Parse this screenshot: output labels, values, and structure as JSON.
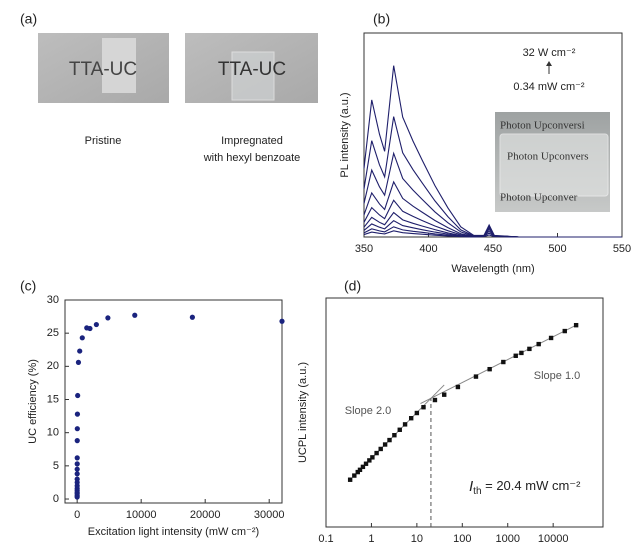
{
  "figure_a": {
    "panel_label": "(a)",
    "photos": [
      {
        "overlay_text": "TTA-UC",
        "caption": [
          "Pristine"
        ]
      },
      {
        "overlay_text": "TTA-UC",
        "caption": [
          "Impregnated",
          "with hexyl benzoate"
        ]
      }
    ]
  },
  "chart_data": [
    {
      "type": "line",
      "panel_label": "(b)",
      "x_label": "Wavelength (nm)",
      "y_label": "PL intensity (a.u.)",
      "x": [
        350,
        356,
        362,
        366,
        373,
        380,
        388,
        395,
        405,
        415,
        425,
        435,
        443,
        447,
        451,
        470,
        550
      ],
      "xlim": [
        350,
        550
      ],
      "xticks": [
        350,
        400,
        450,
        500,
        550
      ],
      "ylim": [
        0,
        100
      ],
      "series": [
        {
          "color": "#1f1f6b",
          "values": [
            33.6,
            67.2,
            50.4,
            42,
            84,
            58.8,
            47,
            37.8,
            25.2,
            14.3,
            5,
            0.8,
            0.8,
            5.9,
            0.8,
            0,
            0
          ]
        },
        {
          "color": "#1f1f6b",
          "values": [
            23.6,
            47.2,
            35.4,
            29.5,
            59,
            41.3,
            33,
            26.6,
            17.7,
            10,
            3.5,
            0.6,
            0.6,
            5,
            0.6,
            0,
            0
          ]
        },
        {
          "color": "#1f1f6b",
          "values": [
            16.4,
            32.8,
            24.6,
            20.5,
            41,
            28.7,
            23,
            18.5,
            12.3,
            7,
            2.5,
            0.4,
            0.5,
            5,
            0.5,
            0,
            0
          ]
        },
        {
          "color": "#1f1f6b",
          "values": [
            10.8,
            21.6,
            16.2,
            13.5,
            27,
            18.9,
            15.1,
            12.2,
            8.1,
            4.6,
            1.6,
            0.3,
            0.5,
            5,
            0.5,
            0,
            0
          ]
        },
        {
          "color": "#1f1f6b",
          "values": [
            7.2,
            14.4,
            10.8,
            9,
            18,
            12.6,
            10.1,
            8.1,
            5.4,
            3.1,
            1.1,
            0.2,
            0.5,
            5,
            0.5,
            0,
            0
          ]
        },
        {
          "color": "#1f1f6b",
          "values": [
            4.8,
            9.6,
            7.2,
            6,
            12,
            8.4,
            6.7,
            5.4,
            3.6,
            2,
            0.7,
            0.1,
            0.5,
            4,
            0.5,
            0,
            0
          ]
        },
        {
          "color": "#1f1f6b",
          "values": [
            3.2,
            6.4,
            4.8,
            4,
            8,
            5.6,
            4.5,
            3.6,
            2.4,
            1.4,
            0.5,
            0.1,
            0.5,
            3,
            0.5,
            0,
            0
          ]
        },
        {
          "color": "#1f1f6b",
          "values": [
            2,
            4,
            3,
            2.5,
            5,
            3.5,
            2.8,
            2.3,
            1.5,
            0.9,
            0.3,
            0,
            0.3,
            2,
            0.3,
            0,
            0
          ]
        },
        {
          "color": "#1f1f6b",
          "values": [
            1.2,
            2.4,
            1.8,
            1.5,
            3,
            2.1,
            1.7,
            1.4,
            0.9,
            0.5,
            0.2,
            0,
            0.2,
            1,
            0.2,
            0,
            0
          ]
        }
      ],
      "annotations": [
        "32 W cm⁻²",
        "0.34 mW cm⁻²"
      ],
      "inset_texts": [
        "Photon Upconversi",
        "Photon Upconvers",
        "Photon Upconver"
      ]
    },
    {
      "type": "scatter",
      "panel_label": "(c)",
      "x_label": "Excitation light intensity (mW cm⁻²)",
      "y_label": "UC efficiency (%)",
      "x": [
        0.34,
        0.5,
        0.76,
        1,
        1.3,
        1.6,
        2,
        2.5,
        3.2,
        4.2,
        5.5,
        7.5,
        10,
        14,
        25,
        40,
        80,
        200,
        400,
        800,
        1500,
        2000,
        3000,
        4800,
        9000,
        18000,
        32000
      ],
      "values": [
        0.3,
        0.5,
        0.8,
        1,
        1.3,
        1.6,
        2,
        2.5,
        3,
        3.8,
        4.5,
        5.3,
        6.2,
        8.8,
        10.6,
        12.8,
        15.6,
        20.6,
        22.3,
        24.3,
        25.8,
        25.7,
        26.3,
        27.3,
        27.7,
        27.4,
        26.8
      ],
      "color": "#1a237e",
      "marker": "circle",
      "xlim": [
        -1900,
        32000
      ],
      "xticks": [
        0,
        10000,
        20000,
        30000
      ],
      "ylim": [
        -0.6,
        30
      ],
      "yticks": [
        0,
        5,
        10,
        15,
        20,
        25,
        30
      ]
    },
    {
      "type": "scatter",
      "panel_label": "(d)",
      "x_label": "Excitation light intensity (mW cm⁻²)",
      "y_label": "UCPL intensity (a.u.)",
      "log_x": true,
      "log_y": true,
      "x": [
        0.34,
        0.42,
        0.5,
        0.56,
        0.65,
        0.76,
        0.9,
        1.05,
        1.3,
        1.6,
        2,
        2.5,
        3.2,
        4.2,
        5.5,
        7.5,
        10,
        14,
        25,
        40,
        80,
        200,
        400,
        800,
        1500,
        2000,
        3000,
        4800,
        9000,
        18000,
        32000
      ],
      "values": [
        116,
        176,
        250,
        314,
        423,
        578,
        810,
        1100,
        1690,
        2560,
        4000,
        6250,
        10200,
        17600,
        30300,
        56300,
        95000,
        170000,
        350000,
        600000,
        1300000,
        3700000,
        7800000,
        16000000,
        30000000,
        40000000,
        60000000,
        97000000,
        180000000,
        360000000,
        650000000
      ],
      "color": "#111111",
      "marker": "square",
      "xlim": [
        0.1,
        125000
      ],
      "xticks": [
        0.1,
        1,
        10,
        100,
        1000,
        10000
      ],
      "ylim": [
        1,
        10000000000
      ],
      "fit_lines": [
        {
          "label": "Slope 2.0",
          "x": [
            0.4,
            40
          ],
          "y": [
            160,
            1600000
          ]
        },
        {
          "label": "Slope 1.0",
          "x": [
            12,
            32000
          ],
          "y": [
            245000,
            650000000
          ]
        }
      ],
      "threshold": {
        "x": 20.4,
        "y": 416000,
        "symbol": "I",
        "subscript": "th",
        "text": " = 20.4 mW cm⁻²"
      }
    }
  ]
}
